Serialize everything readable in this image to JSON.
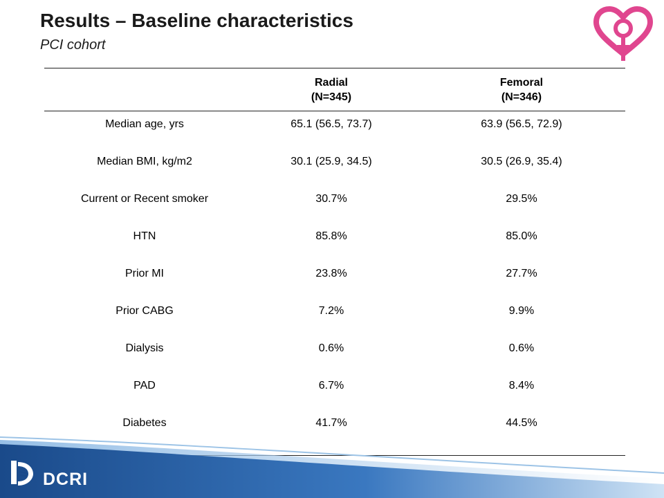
{
  "slide": {
    "title": "Results – Baseline characteristics",
    "subtitle": "PCI cohort"
  },
  "table": {
    "headers": [
      {
        "line1": "",
        "line2": ""
      },
      {
        "line1": "Radial",
        "line2": "(N=345)"
      },
      {
        "line1": "Femoral",
        "line2": "(N=346)"
      }
    ],
    "rows": [
      {
        "label": "Median age, yrs",
        "radial": "65.1 (56.5, 73.7)",
        "femoral": "63.9 (56.5, 72.9)"
      },
      {
        "label": "Median BMI, kg/m2",
        "radial": "30.1 (25.9, 34.5)",
        "femoral": "30.5 (26.9, 35.4)"
      },
      {
        "label": "Current or Recent smoker",
        "radial": "30.7%",
        "femoral": "29.5%"
      },
      {
        "label": "HTN",
        "radial": "85.8%",
        "femoral": "85.0%"
      },
      {
        "label": "Prior MI",
        "radial": "23.8%",
        "femoral": "27.7%"
      },
      {
        "label": "Prior CABG",
        "radial": "7.2%",
        "femoral": "9.9%"
      },
      {
        "label": "Dialysis",
        "radial": "0.6%",
        "femoral": "0.6%"
      },
      {
        "label": "PAD",
        "radial": "6.7%",
        "femoral": "8.4%"
      },
      {
        "label": "Diabetes",
        "radial": "41.7%",
        "femoral": "44.5%"
      }
    ]
  },
  "footer": {
    "logo_text": "DCRI",
    "logo_icon": "duke-d-icon"
  },
  "colors": {
    "logo_pink": "#e0468f",
    "footer_blue": "#1f4f8f",
    "footer_light": "#9cc3e6"
  }
}
